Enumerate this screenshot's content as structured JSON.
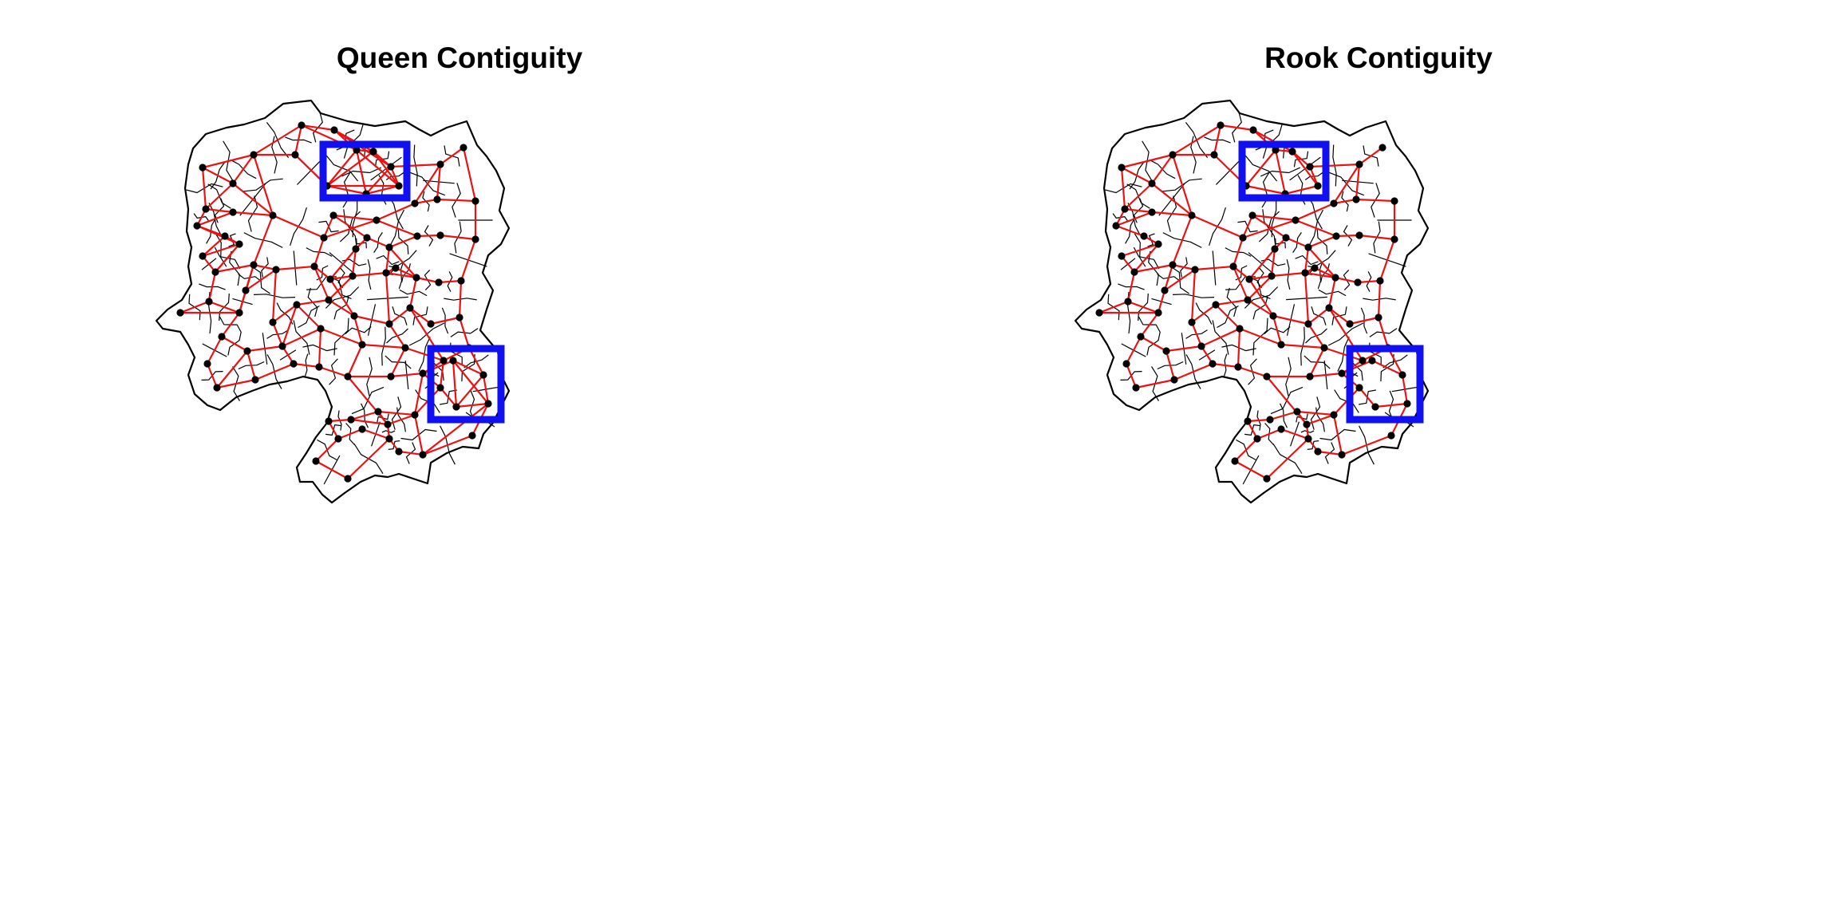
{
  "figure": {
    "panels": [
      {
        "title": "Queen Contiguity",
        "map": "queen",
        "node_color": "#000000",
        "edge_color": "#ee1111",
        "highlight_color": "#1010f0"
      },
      {
        "title": "Rook Contiguity",
        "map": "rook",
        "node_color": "#000000",
        "edge_color": "#ee1111",
        "highlight_color": "#1010f0"
      }
    ]
  }
}
